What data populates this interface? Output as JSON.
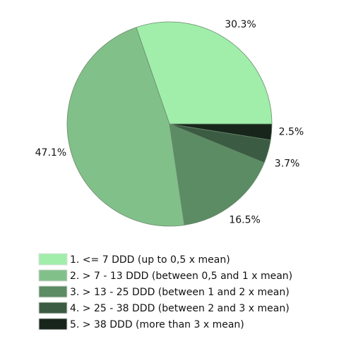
{
  "chart_data": {
    "type": "pie",
    "categories": [
      "1. <= 7 DDD (up to 0,5 x mean)",
      "2. > 7 - 13 DDD (between 0,5 and 1 x mean)",
      "3. > 13 - 25 DDD (between 1 and 2 x mean)",
      "4. > 25 - 38 DDD (between 2 and 3 x mean)",
      "5. > 38 DDD (more than 3 x mean)"
    ],
    "values": [
      30.3,
      47.1,
      16.5,
      3.7,
      2.5
    ],
    "value_labels": [
      "30.3%",
      "47.1%",
      "16.5%",
      "3.7%",
      "2.5%"
    ],
    "colors": [
      "#a0eeaa",
      "#82c08a",
      "#5b8c64",
      "#3b5c42",
      "#17251b"
    ],
    "legend": "bottom"
  }
}
